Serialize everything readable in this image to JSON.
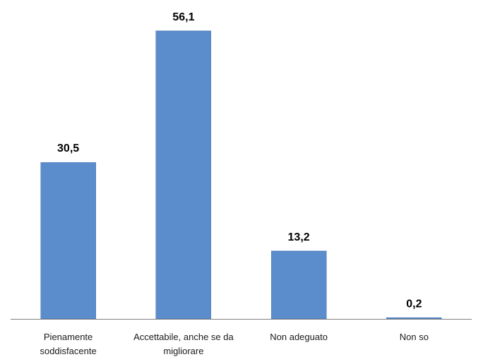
{
  "chart_data": {
    "type": "bar",
    "title": "",
    "xlabel": "",
    "ylabel": "",
    "categories": [
      [
        "Pienamente",
        "soddisfacente"
      ],
      [
        "Accettabile, anche se da",
        "migliorare"
      ],
      [
        "Non adeguato"
      ],
      [
        "Non so"
      ]
    ],
    "values": [
      30.5,
      56.1,
      13.2,
      0.2
    ],
    "value_labels": [
      "30,5",
      "56,1",
      "13,2",
      "0,2"
    ],
    "ylim": [
      0,
      56.1
    ],
    "grid": false,
    "legend": "none",
    "colors": {
      "bar": "#5b8ccc",
      "bar_edge": "#4a7ab8",
      "axis": "#808080"
    }
  }
}
